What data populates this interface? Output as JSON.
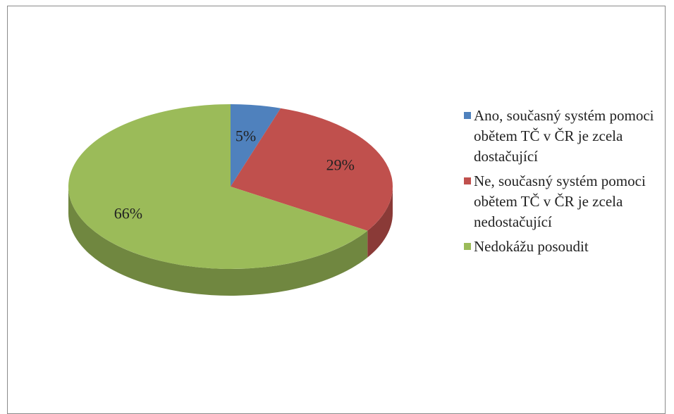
{
  "chart_data": {
    "type": "pie3d",
    "categories": [
      "Ano, současný systém pomoci obětem TČ v ČR je zcela dostačující",
      "Ne, současný systém pomoci obětem TČ v ČR je zcela nedostačující",
      "Nedokážu posoudit"
    ],
    "values": [
      5,
      29,
      66
    ],
    "value_labels": [
      "5%",
      "29%",
      "66%"
    ],
    "colors": [
      "#4f81bd",
      "#c0504d",
      "#9bbb59"
    ],
    "legend": "right"
  }
}
